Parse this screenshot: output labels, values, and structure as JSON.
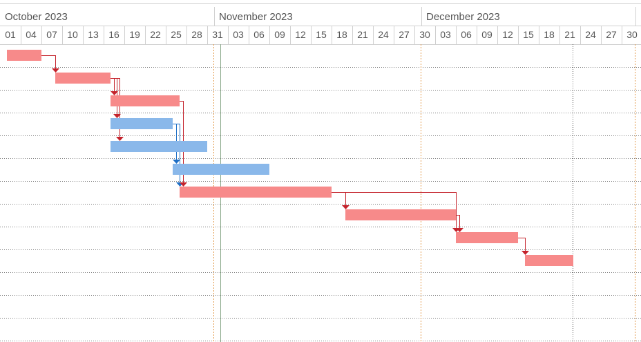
{
  "timescale": {
    "months": [
      {
        "label": "October 2023",
        "start": "2023-10-01"
      },
      {
        "label": "November 2023",
        "start": "2023-11-01"
      },
      {
        "label": "December 2023",
        "start": "2023-12-01"
      }
    ],
    "day_ticks": [
      "01",
      "04",
      "07",
      "10",
      "13",
      "16",
      "19",
      "22",
      "25",
      "28",
      "31",
      "03",
      "06",
      "09",
      "12",
      "15",
      "18",
      "21",
      "24",
      "27",
      "30",
      "03",
      "06",
      "09",
      "12",
      "15",
      "18",
      "21",
      "24",
      "27",
      "30"
    ],
    "today": "2023-11-01",
    "deadline": "2023-12-22"
  },
  "colors": {
    "task_bar": "#f78a8a",
    "task_link": "#c4222b",
    "alt_bar": "#8ab8ea",
    "alt_link": "#1f6fc5",
    "month_divider": "#e29a4c",
    "today_line": "#8aa88a"
  },
  "tasks": [
    {
      "row": 0,
      "start": "2023-10-01",
      "end": "2023-10-06",
      "style": "critical"
    },
    {
      "row": 1,
      "start": "2023-10-08",
      "end": "2023-10-16",
      "style": "critical"
    },
    {
      "row": 2,
      "start": "2023-10-16",
      "end": "2023-10-26",
      "style": "critical"
    },
    {
      "row": 3,
      "start": "2023-10-16",
      "end": "2023-10-25",
      "style": "normal"
    },
    {
      "row": 4,
      "start": "2023-10-16",
      "end": "2023-10-30",
      "style": "normal"
    },
    {
      "row": 5,
      "start": "2023-10-25",
      "end": "2023-11-08",
      "style": "normal"
    },
    {
      "row": 6,
      "start": "2023-10-26",
      "end": "2023-11-17",
      "style": "critical"
    },
    {
      "row": 7,
      "start": "2023-11-19",
      "end": "2023-12-05",
      "style": "critical"
    },
    {
      "row": 8,
      "start": "2023-12-05",
      "end": "2023-12-14",
      "style": "critical"
    },
    {
      "row": 9,
      "start": "2023-12-15",
      "end": "2023-12-22",
      "style": "critical"
    }
  ],
  "links": [
    {
      "from": 0,
      "to": 1,
      "style": "critical"
    },
    {
      "from": 1,
      "to": 2,
      "style": "critical"
    },
    {
      "from": 1,
      "to": 3,
      "style": "critical"
    },
    {
      "from": 1,
      "to": 4,
      "style": "critical"
    },
    {
      "from": 3,
      "to": 5,
      "style": "normal"
    },
    {
      "from": 3,
      "to": 6,
      "style": "normal"
    },
    {
      "from": 2,
      "to": 6,
      "style": "critical"
    },
    {
      "from": 6,
      "to": 7,
      "style": "critical"
    },
    {
      "from": 6,
      "to": 8,
      "style": "critical"
    },
    {
      "from": 7,
      "to": 8,
      "style": "critical"
    },
    {
      "from": 8,
      "to": 9,
      "style": "critical"
    }
  ]
}
